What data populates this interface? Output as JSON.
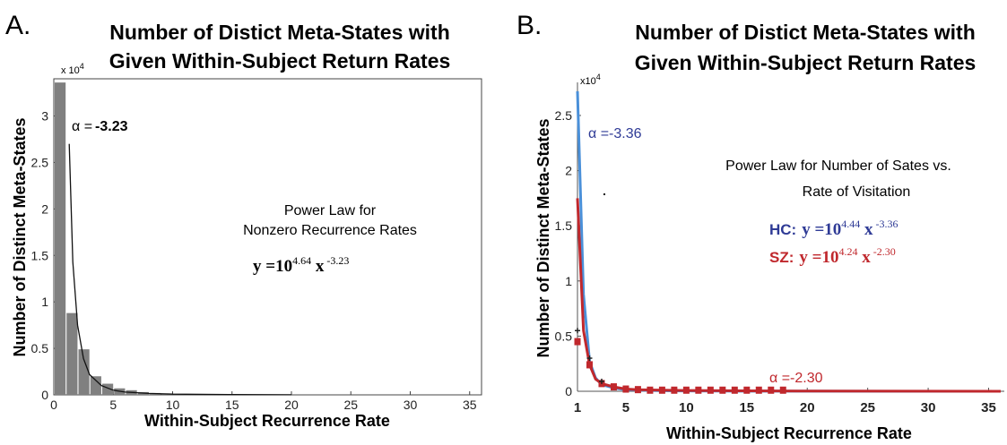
{
  "panels": {
    "a": {
      "letter": "A.",
      "title_line1": "Number of  Distict Meta-States with",
      "title_line2": "Given Within-Subject Return Rates",
      "annotation_line1": "Power Law for",
      "annotation_line2": "Nonzero Recurrence Rates",
      "alpha_label": "α =",
      "alpha_value": "-3.23",
      "eq_base": "y =10",
      "eq_exp": "4.64",
      "eq_x": " x",
      "eq_xexp": " -3.23",
      "multiplier": "x 10",
      "multiplier_exp": "4"
    },
    "b": {
      "letter": "B.",
      "title_line1": "Number of  Distict Meta-States with",
      "title_line2": "Given Within-Subject Return Rates",
      "annotation_line1": "Power Law for  Number of Sates vs.",
      "annotation_line2": "Rate of Visitation",
      "alpha_hc": "α =-3.36",
      "alpha_sz": "α =-2.30",
      "hc_label": "HC:",
      "hc_eq_base": "y =10",
      "hc_eq_exp": "4.44",
      "hc_eq_x": " x",
      "hc_eq_xexp": " -3.36",
      "sz_label": "SZ:",
      "sz_eq_base": "y =10",
      "sz_eq_exp": "4.24",
      "sz_eq_x": " x",
      "sz_eq_xexp": " -2.30",
      "multiplier": "x10",
      "multiplier_exp": "4"
    }
  },
  "colors": {
    "bar": "#808080",
    "hc": "#2f3b96",
    "hc_line": "#4a90d9",
    "sz": "#c0282d"
  },
  "chart_data": [
    {
      "type": "bar",
      "title": "Number of  Distict Meta-States with Given Within-Subject Return Rates",
      "xlabel": "Within-Subject Recurrence Rate",
      "ylabel": "Number of Distinct Meta-States",
      "y_scale_label": "x 10^4",
      "xlim": [
        0,
        36
      ],
      "ylim": [
        0,
        3.4
      ],
      "xticks": [
        "0",
        "5",
        "10",
        "15",
        "20",
        "25",
        "30",
        "35"
      ],
      "yticks": [
        "0",
        "0.5",
        "1",
        "1.5",
        "2",
        "2.5",
        "3"
      ],
      "bars": {
        "x": [
          0,
          1,
          2,
          3,
          4,
          5,
          6,
          7,
          8,
          9,
          10,
          11,
          12
        ],
        "values": [
          3.36,
          0.88,
          0.49,
          0.2,
          0.12,
          0.07,
          0.05,
          0.03,
          0.02,
          0.015,
          0.01,
          0.008,
          0.005
        ]
      },
      "fit": {
        "x": [
          1.3,
          1.6,
          2,
          2.5,
          3,
          4,
          5,
          6,
          8,
          10,
          15,
          20
        ],
        "y": [
          2.7,
          1.43,
          0.75,
          0.39,
          0.22,
          0.1,
          0.05,
          0.03,
          0.015,
          0.008,
          0.003,
          0.001
        ]
      }
    },
    {
      "type": "line",
      "title": "Number of  Distict Meta-States with Given Within-Subject Return Rates",
      "xlabel": "Within-Subject Recurrence Rate",
      "ylabel": "Number of Distinct Meta-States",
      "y_scale_label": "x10^4",
      "xlim": [
        1,
        36
      ],
      "ylim": [
        0,
        2.8
      ],
      "xticks": [
        "1",
        "5",
        "10",
        "15",
        "20",
        "25",
        "30",
        "35"
      ],
      "yticks": [
        "0",
        "0.5",
        "1",
        "1.5",
        "2",
        "2.5"
      ],
      "series": [
        {
          "name": "HC",
          "x": [
            1,
            1.5,
            2,
            2.5,
            3,
            4,
            5,
            6,
            8,
            10,
            15,
            20,
            36
          ],
          "y": [
            2.72,
            0.88,
            0.27,
            0.12,
            0.06,
            0.03,
            0.015,
            0.01,
            0.005,
            0.003,
            0.001,
            0.001,
            0.0
          ]
        },
        {
          "name": "SZ",
          "x": [
            1,
            1.5,
            2,
            2.5,
            3,
            4,
            5,
            6,
            8,
            10,
            15,
            20,
            36
          ],
          "y": [
            1.75,
            0.55,
            0.24,
            0.11,
            0.07,
            0.04,
            0.02,
            0.015,
            0.01,
            0.007,
            0.004,
            0.002,
            0.0
          ]
        }
      ],
      "sz_markers": {
        "x": [
          1,
          2,
          3,
          4,
          5,
          6,
          7,
          8,
          9,
          10,
          11,
          12,
          13,
          14,
          15,
          16,
          17,
          18
        ],
        "y": [
          0.45,
          0.24,
          0.07,
          0.04,
          0.02,
          0.015,
          0.01,
          0.01,
          0.01,
          0.01,
          0.01,
          0.01,
          0.01,
          0.01,
          0.01,
          0.01,
          0.01,
          0.01
        ]
      },
      "hc_markers": {
        "x": [
          1,
          2,
          3
        ],
        "y": [
          0.55,
          0.3,
          0.09
        ]
      }
    }
  ]
}
